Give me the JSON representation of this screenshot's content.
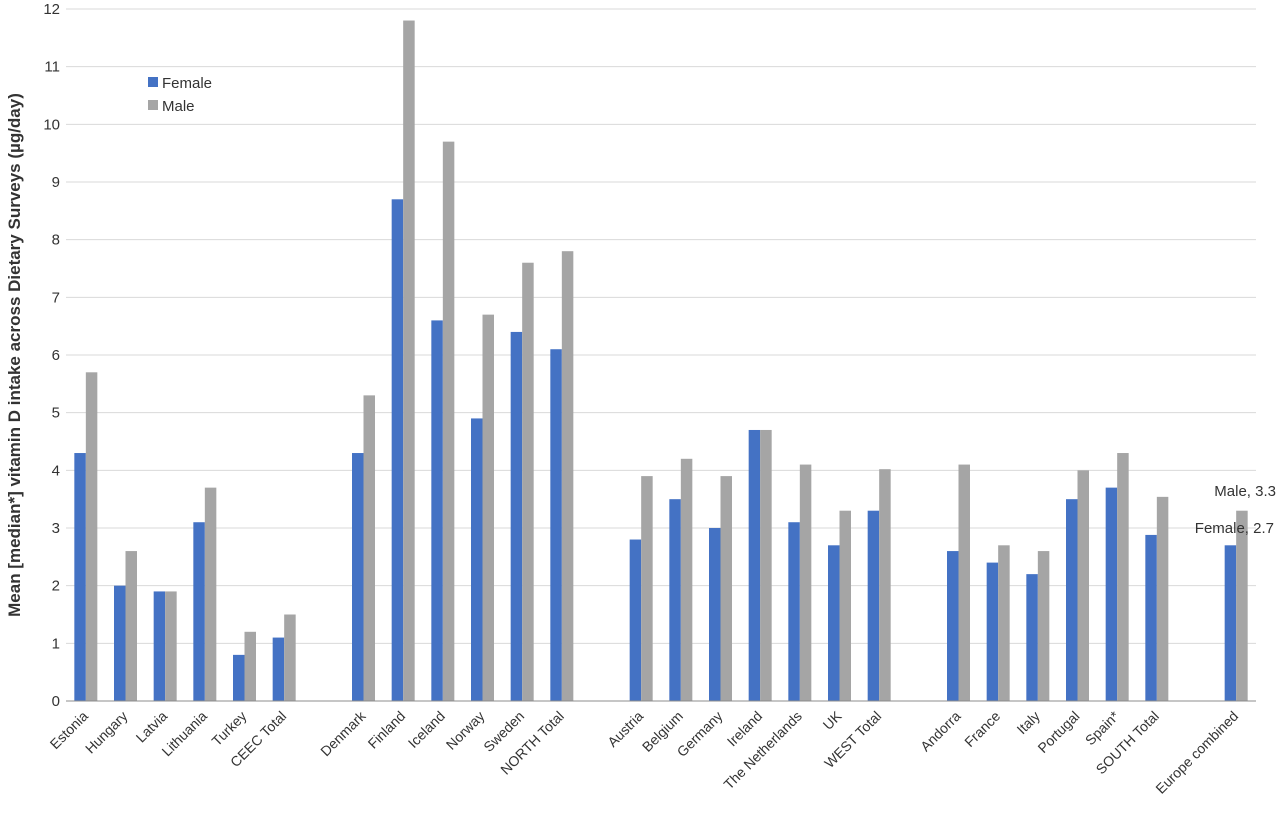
{
  "chart_data": {
    "type": "bar",
    "title": "",
    "xlabel": "",
    "ylabel": "Mean [median*] vitamin D intake across Dietary Surveys (µg/day)",
    "ylim": [
      0,
      12
    ],
    "yticks": [
      0,
      1,
      2,
      3,
      4,
      5,
      6,
      7,
      8,
      9,
      10,
      11,
      12
    ],
    "grid": true,
    "legend": "top-left",
    "groups": [
      {
        "categories": [
          "Estonia",
          "Hungary",
          "Latvia",
          "Lithuania",
          "Turkey",
          "CEEC Total"
        ]
      },
      {
        "categories": [
          "Denmark",
          "Finland",
          "Iceland",
          "Norway",
          "Sweden",
          "NORTH Total"
        ]
      },
      {
        "categories": [
          "Austria",
          "Belgium",
          "Germany",
          "Ireland",
          "The Netherlands",
          "UK",
          "WEST Total"
        ]
      },
      {
        "categories": [
          "Andorra",
          "France",
          "Italy",
          "Portugal",
          "Spain*",
          "SOUTH Total"
        ]
      },
      {
        "categories": [
          "Europe combined"
        ]
      }
    ],
    "categories": [
      "Estonia",
      "Hungary",
      "Latvia",
      "Lithuania",
      "Turkey",
      "CEEC Total",
      "Denmark",
      "Finland",
      "Iceland",
      "Norway",
      "Sweden",
      "NORTH Total",
      "Austria",
      "Belgium",
      "Germany",
      "Ireland",
      "The Netherlands",
      "UK",
      "WEST Total",
      "Andorra",
      "France",
      "Italy",
      "Portugal",
      "Spain*",
      "SOUTH Total",
      "Europe combined"
    ],
    "series": [
      {
        "name": "Female",
        "color": "#4472c4",
        "values": [
          4.3,
          2.0,
          1.9,
          3.1,
          0.8,
          1.1,
          4.3,
          8.7,
          6.6,
          4.9,
          6.4,
          6.1,
          2.8,
          3.5,
          3.0,
          4.7,
          3.1,
          2.7,
          3.3,
          2.6,
          2.4,
          2.2,
          3.5,
          3.7,
          2.88,
          2.7
        ]
      },
      {
        "name": "Male",
        "color": "#a5a5a5",
        "values": [
          5.7,
          2.6,
          1.9,
          3.7,
          1.2,
          1.5,
          5.3,
          11.8,
          9.7,
          6.7,
          7.6,
          7.8,
          3.9,
          4.2,
          3.9,
          4.7,
          4.1,
          3.3,
          4.02,
          4.1,
          2.7,
          2.6,
          4.0,
          4.3,
          3.54,
          3.3
        ]
      }
    ],
    "annotations": [
      {
        "text": "Male, 3.3",
        "category": "Europe combined",
        "series": "Male",
        "value": 3.3
      },
      {
        "text": "Female, 2.7",
        "category": "Europe combined",
        "series": "Female",
        "value": 2.7
      }
    ]
  }
}
